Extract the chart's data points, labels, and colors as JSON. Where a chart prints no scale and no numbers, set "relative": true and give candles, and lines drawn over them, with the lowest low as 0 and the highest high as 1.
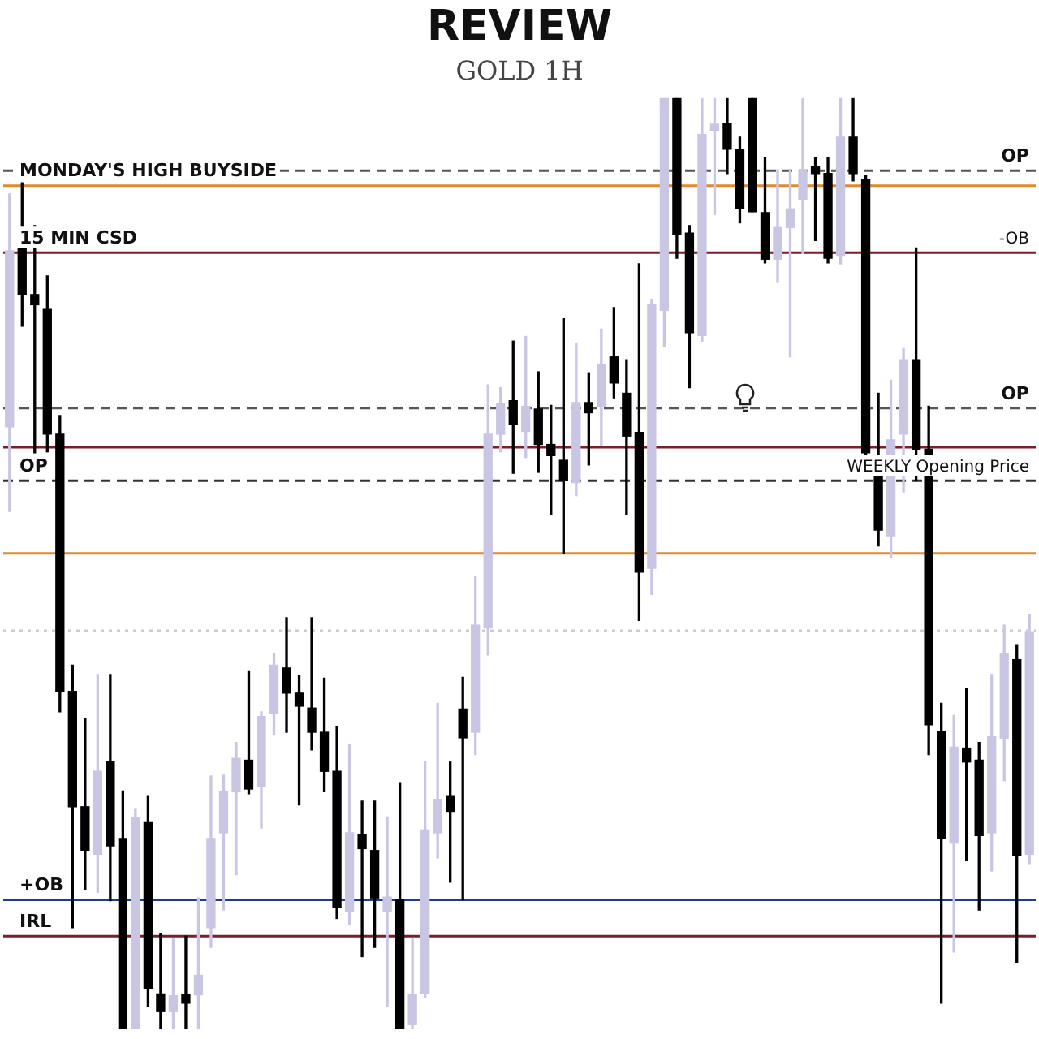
{
  "chart_data": {
    "type": "candlestick",
    "title": "REVIEW",
    "subtitle": "GOLD 1H",
    "relative": true,
    "tick_labels": false,
    "categories": [
      null,
      null,
      null,
      null,
      null,
      null,
      null,
      null,
      null,
      null,
      null,
      null,
      null,
      null,
      null,
      null,
      null,
      null,
      null,
      null,
      null,
      null,
      null,
      null,
      null,
      null,
      null,
      null,
      null,
      null,
      null,
      null,
      null,
      null,
      null,
      null,
      null,
      null,
      null,
      null,
      null,
      null,
      null,
      null,
      null,
      null,
      null,
      null,
      null,
      null,
      null,
      null,
      null,
      null,
      null,
      null,
      null,
      null,
      null,
      null,
      null,
      null,
      null,
      null,
      null,
      null,
      null,
      null,
      null,
      null,
      null,
      null,
      null,
      null,
      null,
      null,
      null,
      null,
      null,
      null,
      null,
      null
    ],
    "ohlc": [
      [
        0.647,
        0.897,
        0.556,
        0.836
      ],
      [
        0.839,
        0.909,
        0.755,
        0.789
      ],
      [
        0.789,
        0.863,
        0.619,
        0.778
      ],
      [
        0.773,
        0.809,
        0.62,
        0.639
      ],
      [
        0.639,
        0.659,
        0.341,
        0.363
      ],
      [
        0.363,
        0.391,
        0.109,
        0.239
      ],
      [
        0.239,
        0.334,
        0.15,
        0.192
      ],
      [
        0.188,
        0.381,
        0.147,
        0.277
      ],
      [
        0.288,
        0.381,
        0.138,
        0.197
      ],
      [
        0.205,
        0.256,
        0,
        0
      ],
      [
        0,
        0.236,
        0,
        0.227
      ],
      [
        0.222,
        0.25,
        0.025,
        0.044
      ],
      [
        0.038,
        0.103,
        0,
        0.019
      ],
      [
        0.019,
        0.097,
        0,
        0.036
      ],
      [
        0.037,
        0.1,
        0,
        0.028
      ],
      [
        0.037,
        0.141,
        0,
        0.058
      ],
      [
        0.109,
        0.272,
        0.088,
        0.205
      ],
      [
        0.211,
        0.273,
        0.128,
        0.255
      ],
      [
        0.255,
        0.308,
        0.166,
        0.291
      ],
      [
        0.289,
        0.384,
        0.253,
        0.258
      ],
      [
        0.261,
        0.341,
        0.216,
        0.336
      ],
      [
        0.339,
        0.403,
        0.316,
        0.391
      ],
      [
        0.388,
        0.442,
        0.319,
        0.361
      ],
      [
        0.361,
        0.38,
        0.241,
        0.347
      ],
      [
        0.345,
        0.442,
        0.3,
        0.319
      ],
      [
        0.319,
        0.377,
        0.255,
        0.277
      ],
      [
        0.277,
        0.325,
        0.119,
        0.131
      ],
      [
        0.127,
        0.306,
        0.113,
        0.211
      ],
      [
        0.209,
        0.245,
        0.078,
        0.194
      ],
      [
        0.192,
        0.245,
        0.088,
        0.141
      ],
      [
        0.127,
        0.228,
        0.025,
        0.142
      ],
      [
        0.139,
        0.264,
        0,
        0
      ],
      [
        0.005,
        0.097,
        0,
        0.037
      ],
      [
        0.038,
        0.287,
        0.034,
        0.214
      ],
      [
        0.211,
        0.35,
        0.184,
        0.247
      ],
      [
        0.25,
        0.287,
        0.158,
        0.234
      ],
      [
        0.344,
        0.378,
        0.139,
        0.313
      ],
      [
        0.319,
        0.486,
        0.295,
        0.434
      ],
      [
        0.431,
        0.692,
        0.402,
        0.639
      ],
      [
        0.639,
        0.689,
        0.62,
        0.672
      ],
      [
        0.675,
        0.739,
        0.597,
        0.65
      ],
      [
        0.642,
        0.744,
        0.614,
        0.669
      ],
      [
        0.666,
        0.706,
        0.598,
        0.628
      ],
      [
        0.628,
        0.67,
        0.553,
        0.616
      ],
      [
        0.611,
        0.763,
        0.511,
        0.589
      ],
      [
        0.587,
        0.737,
        0.573,
        0.673
      ],
      [
        0.673,
        0.705,
        0.606,
        0.662
      ],
      [
        0.669,
        0.752,
        0.627,
        0.714
      ],
      [
        0.722,
        0.775,
        0.678,
        0.694
      ],
      [
        0.683,
        0.719,
        0.553,
        0.637
      ],
      [
        0.641,
        0.822,
        0.439,
        0.491
      ],
      [
        0.495,
        0.784,
        0.467,
        0.778
      ],
      [
        0.772,
        1,
        0.733,
        1
      ],
      [
        1,
        1,
        0.828,
        0.853
      ],
      [
        0.855,
        0.863,
        0.689,
        0.748
      ],
      [
        0.745,
        1,
        0.739,
        0.961
      ],
      [
        0.965,
        1,
        0.875,
        0.972
      ],
      [
        0.973,
        1,
        0.919,
        0.945
      ],
      [
        0.945,
        0.958,
        0.866,
        0.881
      ],
      [
        1,
        1,
        0.878,
        0.878
      ],
      [
        0.877,
        0.936,
        0.823,
        0.827
      ],
      [
        0.827,
        0.923,
        0.802,
        0.861
      ],
      [
        0.861,
        0.923,
        0.722,
        0.881
      ],
      [
        0.891,
        1,
        0.833,
        0.923
      ],
      [
        0.927,
        0.936,
        0.847,
        0.919
      ],
      [
        0.919,
        0.936,
        0.823,
        0.828
      ],
      [
        0.831,
        1,
        0.822,
        0.958
      ],
      [
        0.958,
        1,
        0.911,
        0.919
      ],
      [
        0.912,
        0.917,
        0.614,
        0.619
      ],
      [
        0.616,
        0.683,
        0.519,
        0.536
      ],
      [
        0.53,
        0.697,
        0.506,
        0.633
      ],
      [
        0.639,
        0.731,
        0.577,
        0.719
      ],
      [
        0.719,
        0.839,
        0.589,
        0.623
      ],
      [
        0.623,
        0.669,
        0.295,
        0.327
      ],
      [
        0.32,
        0.35,
        0.028,
        0.205
      ],
      [
        0.2,
        0.337,
        0.083,
        0.303
      ],
      [
        0.302,
        0.366,
        0.181,
        0.287
      ],
      [
        0.289,
        0.308,
        0.128,
        0.208
      ],
      [
        0.211,
        0.381,
        0.17,
        0.314
      ],
      [
        0.312,
        0.434,
        0.267,
        0.403
      ],
      [
        0.397,
        0.413,
        0.072,
        0.187
      ],
      [
        0.188,
        0.445,
        0.177,
        0.427
      ]
    ],
    "colors": [
      "#c9c6e4",
      "#000000",
      "#000000",
      "#000000",
      "#000000",
      "#000000",
      "#000000",
      "#c9c6e4",
      "#000000",
      "#000000",
      "#c9c6e4",
      "#000000",
      "#000000",
      "#c9c6e4",
      "#000000",
      "#c9c6e4",
      "#c9c6e4",
      "#c9c6e4",
      "#c9c6e4",
      "#000000",
      "#c9c6e4",
      "#c9c6e4",
      "#000000",
      "#000000",
      "#000000",
      "#000000",
      "#000000",
      "#c9c6e4",
      "#000000",
      "#000000",
      "#c9c6e4",
      "#000000",
      "#c9c6e4",
      "#c9c6e4",
      "#c9c6e4",
      "#000000",
      "#000000",
      "#c9c6e4",
      "#c9c6e4",
      "#c9c6e4",
      "#000000",
      "#c9c6e4",
      "#000000",
      "#000000",
      "#000000",
      "#c9c6e4",
      "#000000",
      "#c9c6e4",
      "#000000",
      "#000000",
      "#000000",
      "#c9c6e4",
      "#c9c6e4",
      "#000000",
      "#000000",
      "#c9c6e4",
      "#c9c6e4",
      "#000000",
      "#000000",
      "#000000",
      "#000000",
      "#c9c6e4",
      "#c9c6e4",
      "#c9c6e4",
      "#000000",
      "#000000",
      "#c9c6e4",
      "#000000",
      "#000000",
      "#000000",
      "#c9c6e4",
      "#c9c6e4",
      "#000000",
      "#000000",
      "#000000",
      "#c9c6e4",
      "#000000",
      "#000000",
      "#c9c6e4",
      "#c9c6e4",
      "#000000",
      "#c9c6e4"
    ],
    "ref_lines": [
      {
        "axis": "y",
        "value": 0.906,
        "label": "MONDAY'S HIGH BUYSIDE",
        "color": "#e08a2c",
        "line_style": "solid"
      },
      {
        "axis": "y",
        "value": 0.922,
        "label": "OP",
        "color": "#555555",
        "line_style": "dashed"
      },
      {
        "axis": "y",
        "value": 0.834,
        "label": "15 MIN CSD",
        "color": "#7a1f2b",
        "line_style": "solid"
      },
      {
        "axis": "y",
        "value": 0.667,
        "label": "OP",
        "color": "#555555",
        "line_style": "dashed"
      },
      {
        "axis": "y",
        "value": 0.589,
        "label": "OP",
        "color": "#333333",
        "line_style": "dashed"
      },
      {
        "axis": "y",
        "value": 0.511,
        "color": "#e08a2c",
        "line_style": "solid"
      },
      {
        "axis": "y",
        "value": 0.139,
        "label": "+OB",
        "color": "#1f3a93",
        "line_style": "solid"
      },
      {
        "axis": "y",
        "value": 0.625,
        "color": "#7a1f2b",
        "line_style": "solid"
      },
      {
        "axis": "y",
        "value": 0.1,
        "label": "IRL",
        "color": "#7a1f2b",
        "line_style": "solid"
      },
      {
        "axis": "y",
        "value": 0.428,
        "color": "#cccccc",
        "line_style": "dotted"
      }
    ],
    "annotations": [
      {
        "text": "WEEKLY Opening Price",
        "y": 0.589
      },
      {
        "text": "-OB",
        "y": 0.834
      }
    ]
  }
}
